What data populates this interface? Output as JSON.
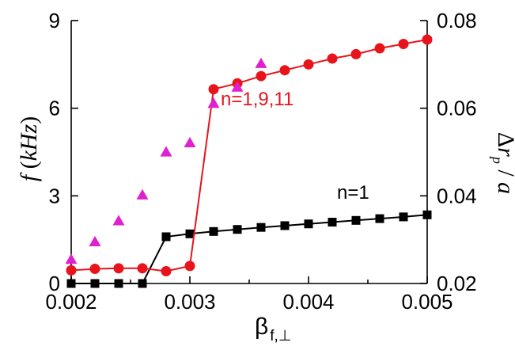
{
  "chart_data": {
    "type": "line",
    "title": "",
    "xlabel": "β",
    "xlabel_sub": "f,⊥",
    "ylabel_left": "f (kHz)",
    "ylabel_left_parts": {
      "var": "f",
      "open": " (",
      "unit": "kHz",
      "close": ")"
    },
    "ylabel_right": "Δr_p / a",
    "ylabel_right_parts": {
      "delta": "Δ",
      "var": "r",
      "sub": "p",
      "slash": " / ",
      "den": "a"
    },
    "xlim": [
      0.002,
      0.005
    ],
    "ylim_left": [
      0,
      9
    ],
    "ylim_right": [
      0.02,
      0.08
    ],
    "x_ticks": [
      0.002,
      0.003,
      0.004,
      0.005
    ],
    "x_tick_labels": [
      "0.002",
      "0.003",
      "0.004",
      "0.005"
    ],
    "y_left_ticks": [
      0,
      3,
      6,
      9
    ],
    "y_left_tick_labels": [
      "0",
      "3",
      "6",
      "9"
    ],
    "y_right_ticks": [
      0.02,
      0.04,
      0.06,
      0.08
    ],
    "y_right_tick_labels": [
      "0.02",
      "0.04",
      "0.06",
      "0.08"
    ],
    "series": [
      {
        "name": "n=1",
        "axis": "left",
        "marker": "square",
        "color": "#000000",
        "line": true,
        "x": [
          0.002,
          0.0022,
          0.0024,
          0.0026,
          0.0028,
          0.003,
          0.0032,
          0.0034,
          0.0036,
          0.0038,
          0.004,
          0.0042,
          0.0044,
          0.0046,
          0.0048,
          0.005
        ],
        "y": [
          0.0,
          0.0,
          0.0,
          0.0,
          1.6,
          1.7,
          1.78,
          1.85,
          1.92,
          1.98,
          2.04,
          2.1,
          2.16,
          2.22,
          2.28,
          2.35
        ]
      },
      {
        "name": "n=1,9,11",
        "axis": "left",
        "marker": "circle",
        "color": "#e8141c",
        "line": true,
        "x": [
          0.002,
          0.0022,
          0.0024,
          0.0026,
          0.0028,
          0.003,
          0.0032,
          0.0034,
          0.0036,
          0.0038,
          0.004,
          0.0042,
          0.0044,
          0.0046,
          0.0048,
          0.005
        ],
        "y": [
          0.45,
          0.5,
          0.52,
          0.52,
          0.42,
          0.6,
          6.65,
          6.85,
          7.1,
          7.3,
          7.5,
          7.7,
          7.85,
          8.05,
          8.2,
          8.35
        ]
      },
      {
        "name": "Δr_p / a",
        "axis": "right",
        "marker": "triangle",
        "color": "#e020d0",
        "line": false,
        "x": [
          0.002,
          0.0022,
          0.0024,
          0.0026,
          0.0028,
          0.003,
          0.0032,
          0.0034,
          0.0036
        ],
        "y": [
          0.0255,
          0.0295,
          0.0343,
          0.0402,
          0.05,
          0.0521,
          0.0611,
          0.0648,
          0.0702
        ]
      }
    ],
    "annotations": [
      {
        "text": "n=1,9,11",
        "color": "#e8141c",
        "x": 0.00326,
        "y": 6.1
      },
      {
        "text": "n=1",
        "color": "#000000",
        "x": 0.00424,
        "y": 2.9
      }
    ]
  }
}
